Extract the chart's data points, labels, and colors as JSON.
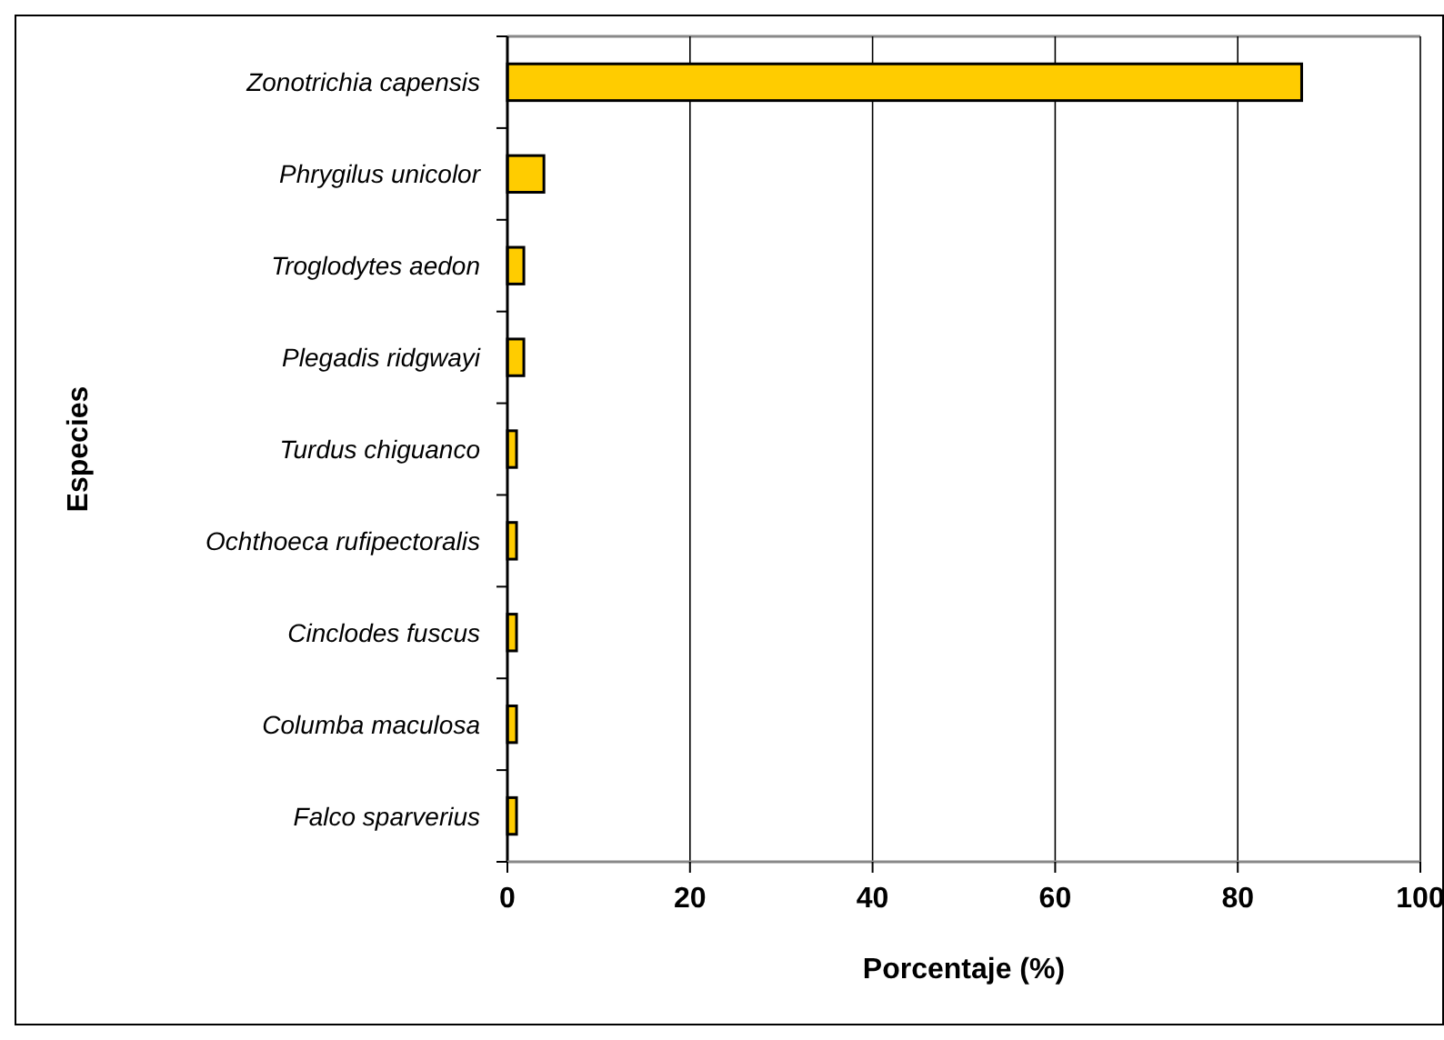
{
  "chart_data": {
    "type": "bar",
    "orientation": "horizontal",
    "categories": [
      "Zonotrichia capensis",
      "Phrygilus unicolor",
      "Troglodytes aedon",
      "Plegadis ridgwayi",
      "Turdus chiguanco",
      "Ochthoeca rufipectoralis",
      "Cinclodes fuscus",
      "Columba maculosa",
      "Falco sparverius"
    ],
    "values": [
      87,
      4,
      1.8,
      1.8,
      1,
      1,
      1,
      1,
      1
    ],
    "color": "#ffcc00",
    "xlim": [
      0,
      100
    ],
    "xticks": [
      0,
      20,
      40,
      60,
      80,
      100
    ],
    "grid": "x",
    "xlabel": "Porcentaje (%)",
    "ylabel": "Especies"
  }
}
